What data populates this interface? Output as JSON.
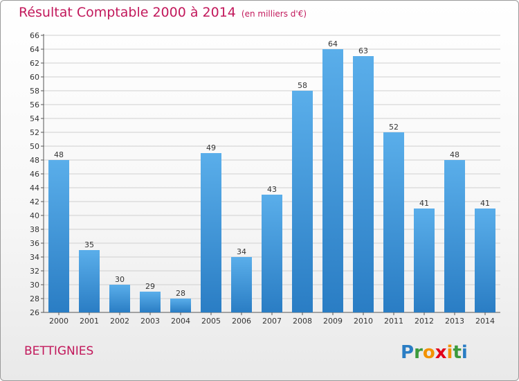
{
  "header": {
    "title": "Résultat Comptable 2000 à 2014",
    "subtitle": "(en milliers d'€)"
  },
  "footer": {
    "town": "BETTIGNIES",
    "brand": "Proxiti"
  },
  "colors": {
    "title": "#c2185b",
    "bar_top": "#5aaeea",
    "bar_bottom": "#2a7dc4",
    "grid": "#cfcfcf"
  },
  "chart_data": {
    "type": "bar",
    "title": "Résultat Comptable 2000 à 2014",
    "subtitle": "(en milliers d'€)",
    "categories": [
      "2000",
      "2001",
      "2002",
      "2003",
      "2004",
      "2005",
      "2006",
      "2007",
      "2008",
      "2009",
      "2010",
      "2011",
      "2012",
      "2013",
      "2014"
    ],
    "values": [
      48,
      35,
      30,
      29,
      28,
      49,
      34,
      43,
      58,
      64,
      63,
      52,
      41,
      48,
      41
    ],
    "ylim": [
      26,
      66
    ],
    "yticks": [
      26,
      28,
      30,
      32,
      34,
      36,
      38,
      40,
      42,
      44,
      46,
      48,
      50,
      52,
      54,
      56,
      58,
      60,
      62,
      64,
      66
    ],
    "xlabel": "",
    "ylabel": "",
    "grid": true
  }
}
